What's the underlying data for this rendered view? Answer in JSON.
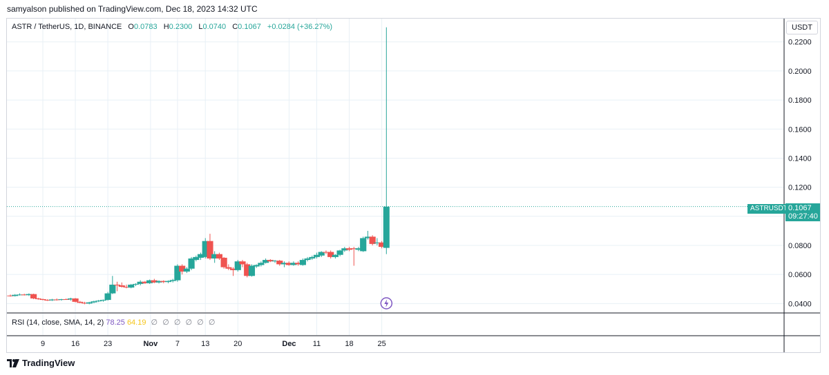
{
  "header": {
    "published": "samyalson published on TradingView.com, Dec 18, 2023 14:32 UTC"
  },
  "legend": {
    "symbol": "ASTR / TetherUS, 1D, BINANCE",
    "o_label": "O",
    "o_value": "0.0783",
    "h_label": "H",
    "h_value": "0.2300",
    "l_label": "L",
    "l_value": "0.0740",
    "c_label": "C",
    "c_value": "0.1067",
    "change": "+0.0284 (+36.27%)"
  },
  "currency_button": "USDT",
  "price_tag": {
    "symbol": "ASTRUSDT",
    "price": "0.1067",
    "countdown": "09:27:40"
  },
  "rsi": {
    "label": "RSI (14, close, SMA, 14, 2)",
    "value": "78.25",
    "ma": "64.19",
    "nulls": [
      "∅",
      "∅",
      "∅",
      "∅",
      "∅",
      "∅"
    ]
  },
  "footer": {
    "brand": "TradingView"
  },
  "colors": {
    "up": "#26a69a",
    "down": "#ef5350",
    "grid": "#e8f0f6",
    "rsi": "#7e57c2"
  },
  "chart_data": {
    "type": "candlestick",
    "title": "ASTR / TetherUS, 1D, BINANCE",
    "xlabel": "",
    "ylabel": "",
    "x_ticks": [
      "9",
      "16",
      "23",
      "Nov",
      "7",
      "13",
      "20",
      "Dec",
      "11",
      "18",
      "25"
    ],
    "y_ticks": [
      "0.0400",
      "0.0600",
      "0.0800",
      "0.1000",
      "0.1200",
      "0.1400",
      "0.1600",
      "0.1800",
      "0.2000",
      "0.2200"
    ],
    "ylim": [
      0.034,
      0.236
    ],
    "grid": true,
    "last_price": 0.1067,
    "series": [
      {
        "o": 0.0455,
        "h": 0.0462,
        "l": 0.0448,
        "c": 0.0452
      },
      {
        "o": 0.0452,
        "h": 0.0465,
        "l": 0.0448,
        "c": 0.046
      },
      {
        "o": 0.046,
        "h": 0.047,
        "l": 0.0455,
        "c": 0.0462
      },
      {
        "o": 0.0462,
        "h": 0.0468,
        "l": 0.0455,
        "c": 0.0458
      },
      {
        "o": 0.0458,
        "h": 0.047,
        "l": 0.0452,
        "c": 0.0465
      },
      {
        "o": 0.0465,
        "h": 0.0468,
        "l": 0.043,
        "c": 0.0435
      },
      {
        "o": 0.0435,
        "h": 0.044,
        "l": 0.0425,
        "c": 0.043
      },
      {
        "o": 0.043,
        "h": 0.0435,
        "l": 0.0422,
        "c": 0.0425
      },
      {
        "o": 0.0425,
        "h": 0.043,
        "l": 0.0418,
        "c": 0.0422
      },
      {
        "o": 0.0422,
        "h": 0.0432,
        "l": 0.0418,
        "c": 0.0428
      },
      {
        "o": 0.0428,
        "h": 0.0435,
        "l": 0.042,
        "c": 0.0425
      },
      {
        "o": 0.0425,
        "h": 0.0432,
        "l": 0.042,
        "c": 0.043
      },
      {
        "o": 0.043,
        "h": 0.0435,
        "l": 0.0425,
        "c": 0.0428
      },
      {
        "o": 0.0428,
        "h": 0.044,
        "l": 0.042,
        "c": 0.0435
      },
      {
        "o": 0.0435,
        "h": 0.0438,
        "l": 0.0408,
        "c": 0.0412
      },
      {
        "o": 0.0412,
        "h": 0.0418,
        "l": 0.0402,
        "c": 0.0405
      },
      {
        "o": 0.0405,
        "h": 0.0412,
        "l": 0.0395,
        "c": 0.04
      },
      {
        "o": 0.04,
        "h": 0.0412,
        "l": 0.0395,
        "c": 0.0408
      },
      {
        "o": 0.0408,
        "h": 0.042,
        "l": 0.0402,
        "c": 0.0415
      },
      {
        "o": 0.0415,
        "h": 0.0425,
        "l": 0.041,
        "c": 0.042
      },
      {
        "o": 0.042,
        "h": 0.0428,
        "l": 0.0412,
        "c": 0.0425
      },
      {
        "o": 0.0425,
        "h": 0.048,
        "l": 0.042,
        "c": 0.047
      },
      {
        "o": 0.047,
        "h": 0.059,
        "l": 0.0465,
        "c": 0.053
      },
      {
        "o": 0.053,
        "h": 0.055,
        "l": 0.0485,
        "c": 0.0525
      },
      {
        "o": 0.0525,
        "h": 0.0545,
        "l": 0.051,
        "c": 0.0515
      },
      {
        "o": 0.0515,
        "h": 0.053,
        "l": 0.0505,
        "c": 0.051
      },
      {
        "o": 0.051,
        "h": 0.0535,
        "l": 0.0505,
        "c": 0.053
      },
      {
        "o": 0.053,
        "h": 0.054,
        "l": 0.052,
        "c": 0.0535
      },
      {
        "o": 0.0535,
        "h": 0.056,
        "l": 0.0525,
        "c": 0.055
      },
      {
        "o": 0.055,
        "h": 0.0555,
        "l": 0.0535,
        "c": 0.054
      },
      {
        "o": 0.054,
        "h": 0.0565,
        "l": 0.0535,
        "c": 0.056
      },
      {
        "o": 0.056,
        "h": 0.057,
        "l": 0.054,
        "c": 0.0545
      },
      {
        "o": 0.0545,
        "h": 0.056,
        "l": 0.0538,
        "c": 0.0555
      },
      {
        "o": 0.0555,
        "h": 0.056,
        "l": 0.054,
        "c": 0.0548
      },
      {
        "o": 0.0548,
        "h": 0.056,
        "l": 0.054,
        "c": 0.0555
      },
      {
        "o": 0.0555,
        "h": 0.057,
        "l": 0.0545,
        "c": 0.0562
      },
      {
        "o": 0.056,
        "h": 0.067,
        "l": 0.055,
        "c": 0.066
      },
      {
        "o": 0.066,
        "h": 0.067,
        "l": 0.06,
        "c": 0.062
      },
      {
        "o": 0.062,
        "h": 0.065,
        "l": 0.061,
        "c": 0.064
      },
      {
        "o": 0.064,
        "h": 0.072,
        "l": 0.063,
        "c": 0.071
      },
      {
        "o": 0.07,
        "h": 0.073,
        "l": 0.069,
        "c": 0.072
      },
      {
        "o": 0.0715,
        "h": 0.075,
        "l": 0.07,
        "c": 0.074
      },
      {
        "o": 0.072,
        "h": 0.085,
        "l": 0.071,
        "c": 0.083
      },
      {
        "o": 0.083,
        "h": 0.088,
        "l": 0.07,
        "c": 0.071
      },
      {
        "o": 0.071,
        "h": 0.076,
        "l": 0.068,
        "c": 0.074
      },
      {
        "o": 0.074,
        "h": 0.075,
        "l": 0.07,
        "c": 0.071
      },
      {
        "o": 0.0715,
        "h": 0.072,
        "l": 0.064,
        "c": 0.065
      },
      {
        "o": 0.065,
        "h": 0.067,
        "l": 0.063,
        "c": 0.064
      },
      {
        "o": 0.064,
        "h": 0.065,
        "l": 0.059,
        "c": 0.063
      },
      {
        "o": 0.063,
        "h": 0.07,
        "l": 0.062,
        "c": 0.069
      },
      {
        "o": 0.069,
        "h": 0.07,
        "l": 0.065,
        "c": 0.067
      },
      {
        "o": 0.067,
        "h": 0.068,
        "l": 0.058,
        "c": 0.059
      },
      {
        "o": 0.059,
        "h": 0.067,
        "l": 0.0585,
        "c": 0.066
      },
      {
        "o": 0.0655,
        "h": 0.067,
        "l": 0.0645,
        "c": 0.0665
      },
      {
        "o": 0.0665,
        "h": 0.069,
        "l": 0.0655,
        "c": 0.068
      },
      {
        "o": 0.068,
        "h": 0.071,
        "l": 0.0675,
        "c": 0.07
      },
      {
        "o": 0.07,
        "h": 0.0705,
        "l": 0.0685,
        "c": 0.069
      },
      {
        "o": 0.069,
        "h": 0.07,
        "l": 0.068,
        "c": 0.0695
      },
      {
        "o": 0.0695,
        "h": 0.07,
        "l": 0.066,
        "c": 0.067
      },
      {
        "o": 0.067,
        "h": 0.069,
        "l": 0.065,
        "c": 0.068
      },
      {
        "o": 0.068,
        "h": 0.069,
        "l": 0.066,
        "c": 0.0665
      },
      {
        "o": 0.0665,
        "h": 0.069,
        "l": 0.066,
        "c": 0.068
      },
      {
        "o": 0.068,
        "h": 0.069,
        "l": 0.066,
        "c": 0.067
      },
      {
        "o": 0.0665,
        "h": 0.071,
        "l": 0.066,
        "c": 0.07
      },
      {
        "o": 0.07,
        "h": 0.072,
        "l": 0.069,
        "c": 0.071
      },
      {
        "o": 0.071,
        "h": 0.073,
        "l": 0.07,
        "c": 0.072
      },
      {
        "o": 0.072,
        "h": 0.075,
        "l": 0.071,
        "c": 0.0735
      },
      {
        "o": 0.073,
        "h": 0.076,
        "l": 0.072,
        "c": 0.0755
      },
      {
        "o": 0.0755,
        "h": 0.0765,
        "l": 0.074,
        "c": 0.075
      },
      {
        "o": 0.0755,
        "h": 0.0765,
        "l": 0.071,
        "c": 0.072
      },
      {
        "o": 0.072,
        "h": 0.074,
        "l": 0.071,
        "c": 0.0735
      },
      {
        "o": 0.0735,
        "h": 0.077,
        "l": 0.0725,
        "c": 0.0765
      },
      {
        "o": 0.0765,
        "h": 0.079,
        "l": 0.0755,
        "c": 0.078
      },
      {
        "o": 0.078,
        "h": 0.079,
        "l": 0.076,
        "c": 0.077
      },
      {
        "o": 0.078,
        "h": 0.079,
        "l": 0.066,
        "c": 0.0775
      },
      {
        "o": 0.077,
        "h": 0.079,
        "l": 0.076,
        "c": 0.078
      },
      {
        "o": 0.076,
        "h": 0.086,
        "l": 0.0755,
        "c": 0.085
      },
      {
        "o": 0.085,
        "h": 0.09,
        "l": 0.084,
        "c": 0.086
      },
      {
        "o": 0.086,
        "h": 0.087,
        "l": 0.08,
        "c": 0.081
      },
      {
        "o": 0.0815,
        "h": 0.085,
        "l": 0.08,
        "c": 0.082
      },
      {
        "o": 0.082,
        "h": 0.083,
        "l": 0.078,
        "c": 0.079
      },
      {
        "o": 0.0783,
        "h": 0.23,
        "l": 0.074,
        "c": 0.1067
      }
    ],
    "rsi_last": 78.25,
    "rsi_ma_last": 64.19
  }
}
